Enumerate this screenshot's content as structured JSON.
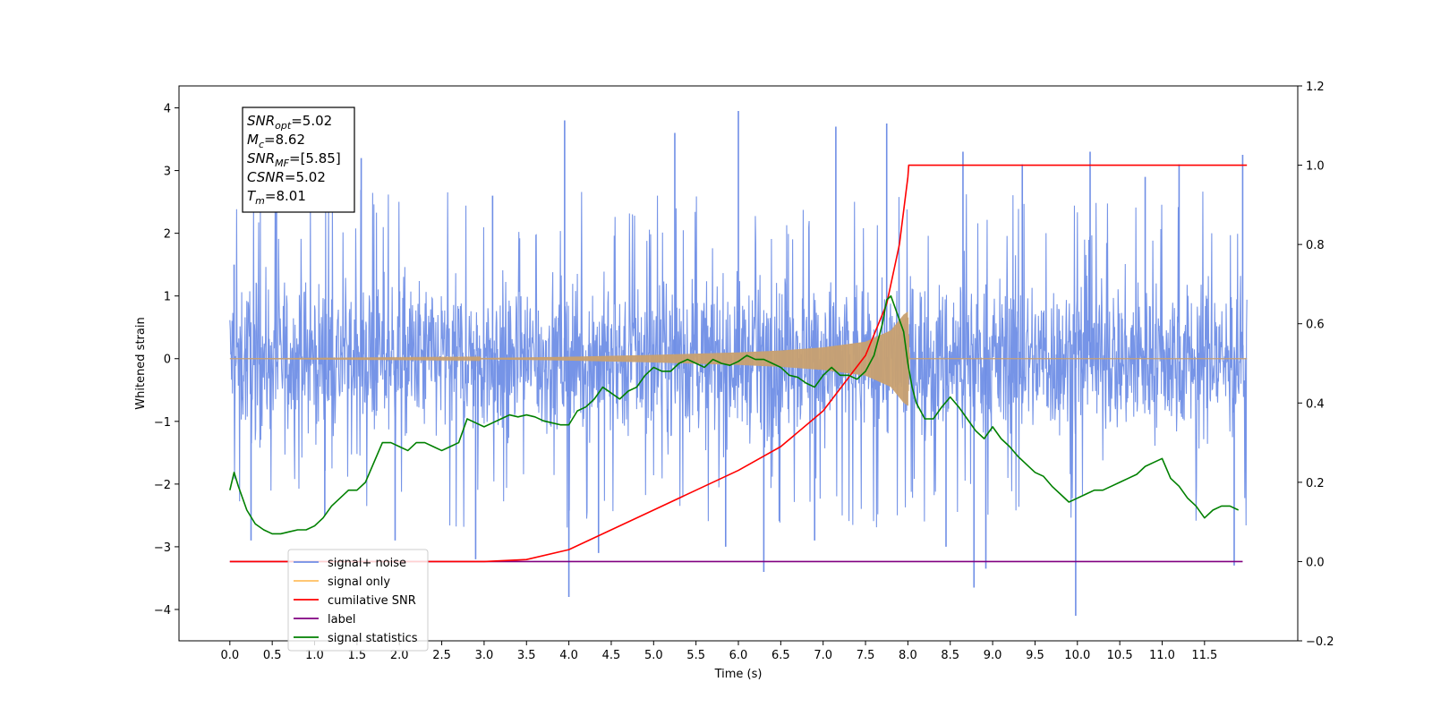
{
  "chart_data": {
    "type": "line",
    "xlabel": "Time (s)",
    "ylabel": "Whitened strain",
    "xlim": [
      -0.6,
      12.6
    ],
    "ylim_left": [
      -4.5,
      4.35
    ],
    "ylim_right": [
      -0.2,
      1.2
    ],
    "x_ticks": [
      0.0,
      0.5,
      1.0,
      1.5,
      2.0,
      2.5,
      3.0,
      3.5,
      4.0,
      4.5,
      5.0,
      5.5,
      6.0,
      6.5,
      7.0,
      7.5,
      8.0,
      8.5,
      9.0,
      9.5,
      10.0,
      10.5,
      11.0,
      11.5
    ],
    "x_tick_labels": [
      "0.0",
      "0.5",
      "1.0",
      "1.5",
      "2.0",
      "2.5",
      "3.0",
      "3.5",
      "4.0",
      "4.5",
      "5.0",
      "5.5",
      "6.0",
      "6.5",
      "7.0",
      "7.5",
      "8.0",
      "8.5",
      "9.0",
      "9.5",
      "10.0",
      "10.5",
      "11.0",
      "11.5"
    ],
    "y_ticks_left": [
      4,
      3,
      2,
      1,
      0,
      -1,
      -2,
      -3,
      -4
    ],
    "y_tick_labels_left": [
      "4",
      "3",
      "2",
      "1",
      "0",
      "−1",
      "−2",
      "−3",
      "−4"
    ],
    "y_ticks_right": [
      1.2,
      1.0,
      0.8,
      0.6,
      0.4,
      0.2,
      0.0,
      -0.2
    ],
    "y_tick_labels_right": [
      "1.2",
      "1.0",
      "0.8",
      "0.6",
      "0.4",
      "0.2",
      "0.0",
      "−0.2"
    ],
    "legend": {
      "placement": "lower-left",
      "entries": [
        {
          "label": "signal+ noise",
          "color": "#6f8ee6"
        },
        {
          "label": "signal only",
          "color": "#ffbf60"
        },
        {
          "label": "cumilative SNR",
          "color": "#ff0000"
        },
        {
          "label": "label",
          "color": "#800080"
        },
        {
          "label": "signal statistics",
          "color": "#008000"
        }
      ]
    },
    "annotation": {
      "lines": [
        {
          "base": "SNR",
          "sub": "opt",
          "value": "=5.02"
        },
        {
          "base": "M",
          "sub": "c",
          "value": "=8.62"
        },
        {
          "base": "SNR",
          "sub": "MF",
          "value": "=[5.85]"
        },
        {
          "base": "CSNR",
          "sub": "",
          "value": "=5.02"
        },
        {
          "base": "T",
          "sub": "m",
          "value": "=8.01"
        }
      ]
    },
    "series": [
      {
        "name": "signal+ noise",
        "axis": "left",
        "color": "#6f8ee6",
        "x_range": [
          0.0,
          12.0
        ],
        "envelope_typical": [
          -2.0,
          2.0
        ],
        "notable_spikes": [
          {
            "x": 0.05,
            "y": 1.5
          },
          {
            "x": 0.25,
            "y": -2.9
          },
          {
            "x": 0.55,
            "y": 2.8
          },
          {
            "x": 1.12,
            "y": -2.5
          },
          {
            "x": 1.55,
            "y": 3.2
          },
          {
            "x": 1.95,
            "y": -2.9
          },
          {
            "x": 2.9,
            "y": -3.2
          },
          {
            "x": 3.1,
            "y": 2.6
          },
          {
            "x": 3.95,
            "y": 3.8
          },
          {
            "x": 4.0,
            "y": -3.8
          },
          {
            "x": 4.35,
            "y": -3.1
          },
          {
            "x": 5.25,
            "y": 3.6
          },
          {
            "x": 5.85,
            "y": -3.0
          },
          {
            "x": 6.0,
            "y": 3.95
          },
          {
            "x": 6.3,
            "y": -3.4
          },
          {
            "x": 6.9,
            "y": -2.9
          },
          {
            "x": 7.15,
            "y": 3.7
          },
          {
            "x": 7.75,
            "y": 3.75
          },
          {
            "x": 8.45,
            "y": -3.0
          },
          {
            "x": 8.65,
            "y": 3.3
          },
          {
            "x": 8.78,
            "y": -3.65
          },
          {
            "x": 8.92,
            "y": -3.35
          },
          {
            "x": 9.35,
            "y": 3.1
          },
          {
            "x": 9.98,
            "y": -4.1
          },
          {
            "x": 10.15,
            "y": 3.3
          },
          {
            "x": 10.8,
            "y": 2.9
          },
          {
            "x": 11.2,
            "y": 3.1
          },
          {
            "x": 11.85,
            "y": -3.3
          },
          {
            "x": 11.95,
            "y": 3.25
          }
        ]
      },
      {
        "name": "signal only",
        "axis": "left",
        "color": "#c8a070",
        "x": [
          0.0,
          3.0,
          4.0,
          5.0,
          6.0,
          6.5,
          7.0,
          7.5,
          7.8,
          7.95,
          8.0,
          8.02,
          12.0
        ],
        "envelope": [
          0.0,
          0.01,
          0.03,
          0.06,
          0.1,
          0.13,
          0.18,
          0.27,
          0.45,
          0.7,
          0.75,
          0.0,
          0.0
        ]
      },
      {
        "name": "cumilative SNR",
        "axis": "right",
        "color": "#ff0000",
        "x": [
          0.0,
          3.0,
          3.5,
          4.0,
          4.5,
          5.0,
          5.5,
          6.0,
          6.5,
          7.0,
          7.5,
          7.75,
          7.9,
          8.0,
          8.01,
          12.0
        ],
        "values": [
          0.0,
          0.0,
          0.005,
          0.03,
          0.08,
          0.13,
          0.18,
          0.23,
          0.29,
          0.38,
          0.52,
          0.65,
          0.8,
          0.97,
          1.0,
          1.0
        ]
      },
      {
        "name": "label",
        "axis": "right",
        "color": "#800080",
        "x": [
          0.0,
          11.95
        ],
        "values": [
          0.0,
          0.0
        ]
      },
      {
        "name": "signal statistics",
        "axis": "right",
        "color": "#008000",
        "x": [
          0.0,
          0.05,
          0.1,
          0.2,
          0.3,
          0.4,
          0.5,
          0.6,
          0.7,
          0.8,
          0.9,
          1.0,
          1.1,
          1.2,
          1.3,
          1.4,
          1.5,
          1.6,
          1.7,
          1.8,
          1.9,
          2.0,
          2.1,
          2.2,
          2.3,
          2.4,
          2.5,
          2.6,
          2.7,
          2.8,
          2.9,
          3.0,
          3.1,
          3.2,
          3.3,
          3.4,
          3.5,
          3.6,
          3.7,
          3.8,
          3.9,
          4.0,
          4.1,
          4.2,
          4.3,
          4.4,
          4.5,
          4.6,
          4.7,
          4.8,
          4.9,
          5.0,
          5.1,
          5.2,
          5.3,
          5.4,
          5.5,
          5.6,
          5.7,
          5.8,
          5.9,
          6.0,
          6.1,
          6.2,
          6.3,
          6.4,
          6.5,
          6.6,
          6.7,
          6.8,
          6.9,
          7.0,
          7.1,
          7.2,
          7.3,
          7.4,
          7.5,
          7.6,
          7.7,
          7.75,
          7.8,
          7.85,
          7.9,
          7.95,
          8.0,
          8.05,
          8.1,
          8.2,
          8.3,
          8.4,
          8.5,
          8.6,
          8.7,
          8.8,
          8.9,
          9.0,
          9.1,
          9.2,
          9.3,
          9.4,
          9.5,
          9.6,
          9.7,
          9.8,
          9.9,
          10.0,
          10.1,
          10.2,
          10.3,
          10.4,
          10.5,
          10.6,
          10.7,
          10.8,
          10.9,
          11.0,
          11.1,
          11.2,
          11.3,
          11.4,
          11.5,
          11.6,
          11.7,
          11.8,
          11.9
        ],
        "values": [
          0.18,
          0.225,
          0.19,
          0.13,
          0.095,
          0.08,
          0.07,
          0.07,
          0.075,
          0.08,
          0.08,
          0.09,
          0.11,
          0.14,
          0.16,
          0.18,
          0.18,
          0.2,
          0.25,
          0.3,
          0.3,
          0.29,
          0.28,
          0.3,
          0.3,
          0.29,
          0.28,
          0.29,
          0.3,
          0.36,
          0.35,
          0.34,
          0.35,
          0.36,
          0.37,
          0.365,
          0.37,
          0.365,
          0.355,
          0.35,
          0.345,
          0.345,
          0.38,
          0.39,
          0.41,
          0.44,
          0.425,
          0.41,
          0.43,
          0.44,
          0.47,
          0.49,
          0.48,
          0.48,
          0.5,
          0.51,
          0.5,
          0.49,
          0.51,
          0.5,
          0.495,
          0.505,
          0.52,
          0.51,
          0.51,
          0.5,
          0.49,
          0.47,
          0.465,
          0.45,
          0.44,
          0.47,
          0.49,
          0.47,
          0.47,
          0.46,
          0.48,
          0.52,
          0.6,
          0.66,
          0.67,
          0.64,
          0.61,
          0.58,
          0.5,
          0.44,
          0.4,
          0.36,
          0.36,
          0.39,
          0.415,
          0.39,
          0.36,
          0.33,
          0.31,
          0.34,
          0.31,
          0.29,
          0.265,
          0.245,
          0.225,
          0.215,
          0.19,
          0.17,
          0.15,
          0.16,
          0.17,
          0.18,
          0.18,
          0.19,
          0.2,
          0.21,
          0.22,
          0.24,
          0.25,
          0.26,
          0.21,
          0.19,
          0.16,
          0.14,
          0.11,
          0.13,
          0.14,
          0.14,
          0.13
        ]
      }
    ]
  }
}
